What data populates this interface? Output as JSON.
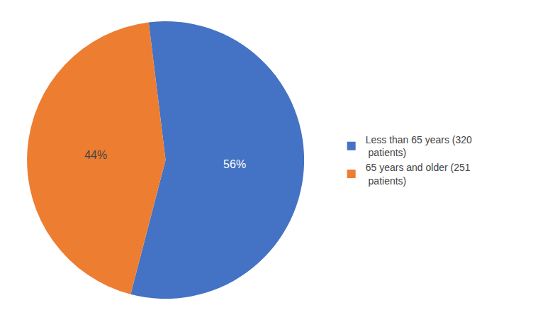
{
  "chart_data": {
    "type": "pie",
    "categories": [
      "Less than 65 years (320\n patients)",
      "65 years and older (251\n patients)"
    ],
    "values": [
      56,
      44
    ],
    "value_labels": [
      "56%",
      "44%"
    ],
    "colors": [
      "#4472C4",
      "#ED7D31"
    ],
    "data_labels": true,
    "legend": "right"
  }
}
